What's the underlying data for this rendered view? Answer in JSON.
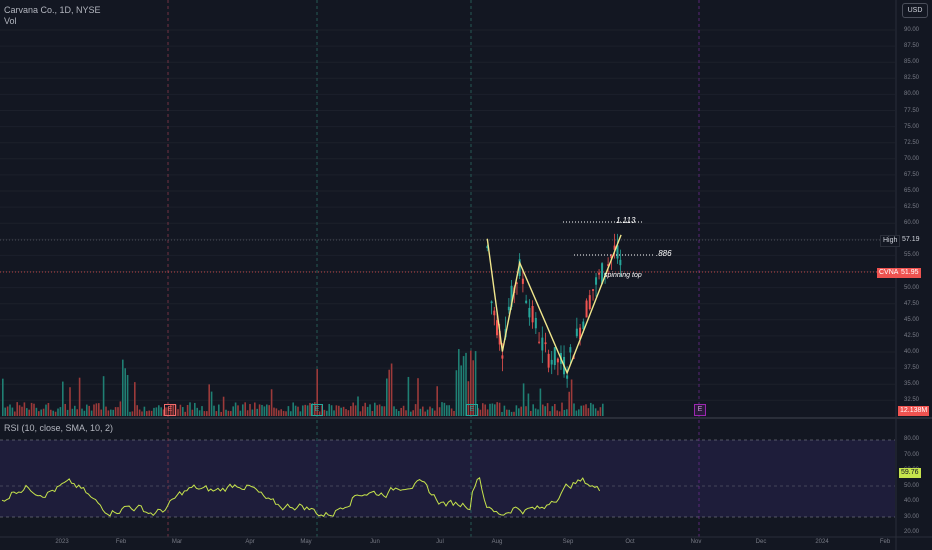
{
  "header": {
    "symbol_title": "Carvana Co., 1D, NYSE",
    "volume_label": "Vol",
    "currency_button": "USD"
  },
  "price_scale": {
    "ticks": [
      "90.00",
      "87.50",
      "85.00",
      "82.50",
      "80.00",
      "77.50",
      "75.00",
      "72.50",
      "70.00",
      "67.50",
      "65.00",
      "62.50",
      "60.00",
      "57.50",
      "55.00",
      "52.50",
      "50.00",
      "47.50",
      "45.00",
      "42.50",
      "40.00",
      "37.50",
      "35.00",
      "32.50"
    ],
    "high_label": "High",
    "high_value": "57.19",
    "symbol_label": "CVNA",
    "last_value": "51.95",
    "volume_value": "12.138M"
  },
  "rsi_panel": {
    "legend": "RSI (10, close, SMA, 10, 2)",
    "ticks": [
      "80.00",
      "70.00",
      "60.00",
      "50.00",
      "40.00",
      "30.00",
      "20.00"
    ],
    "current_value": "59.76",
    "upper_band": 80,
    "lower_band": 30,
    "middle_line": 50
  },
  "time_axis": {
    "labels": [
      "2023",
      "Feb",
      "Mar",
      "Apr",
      "May",
      "Jun",
      "Jul",
      "Aug",
      "Sep",
      "Oct",
      "Nov",
      "Dec",
      "2024",
      "Feb"
    ]
  },
  "annotations": {
    "fib_1113": "1.113",
    "fib_886": ".886",
    "note": "spinning top"
  },
  "earnings_markers": [
    "E",
    "E",
    "E",
    "E"
  ],
  "colors": {
    "background": "#131722",
    "up": "#26a69a",
    "down": "#ef5350",
    "volume_up": "#1f7f73",
    "volume_down": "#9c3a3a",
    "pattern_line": "#f0e68c",
    "rsi_line": "#c6e34c",
    "rsi_band": "#1f1e3b",
    "last_price_line": "#ef5350"
  },
  "chart_data": {
    "type": "candlestick",
    "title": "Carvana Co., 1D, NYSE",
    "ylim": [
      30,
      92
    ],
    "last_price": 51.95,
    "high": 57.19,
    "pattern_points": [
      {
        "date": "2023-07-18",
        "price": 57.2
      },
      {
        "date": "2023-07-25",
        "price": 39.8
      },
      {
        "date": "2023-08-02",
        "price": 53.5
      },
      {
        "date": "2023-08-24",
        "price": 36.5
      },
      {
        "date": "2023-09-18",
        "price": 57.8
      }
    ],
    "fib_levels": [
      {
        "label": "1.113",
        "price": 59.8
      },
      {
        "label": ".886",
        "price": 55.3
      }
    ],
    "closes": [
      {
        "date": "2023-07-18",
        "close": 55.8
      },
      {
        "date": "2023-07-20",
        "close": 47.5
      },
      {
        "date": "2023-07-25",
        "close": 40.5
      },
      {
        "date": "2023-07-28",
        "close": 46.5
      },
      {
        "date": "2023-08-02",
        "close": 52.5
      },
      {
        "date": "2023-08-08",
        "close": 45.0
      },
      {
        "date": "2023-08-14",
        "close": 39.5
      },
      {
        "date": "2023-08-24",
        "close": 37.5
      },
      {
        "date": "2023-08-30",
        "close": 43.5
      },
      {
        "date": "2023-09-05",
        "close": 49.5
      },
      {
        "date": "2023-09-12",
        "close": 53.5
      },
      {
        "date": "2023-09-15",
        "close": 55.5
      },
      {
        "date": "2023-09-19",
        "close": 51.95
      }
    ]
  }
}
